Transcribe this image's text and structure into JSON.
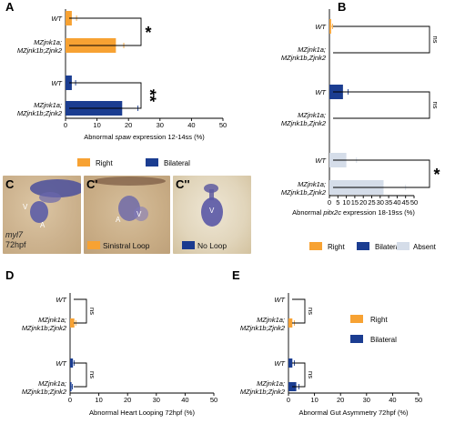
{
  "panels": {
    "A": {
      "letter": "A"
    },
    "B": {
      "letter": "B"
    },
    "C": {
      "letter": "C",
      "letter2": "C'",
      "letter3": "C''",
      "stage": "myl7",
      "time": "72hpf",
      "legend_sinistral": "Sinistral Loop",
      "legend_noloop": "No Loop",
      "chamber_v": "V",
      "chamber_a": "A",
      "colors": {
        "sinistral": "#f7a233",
        "noloop": "#1a3a8f"
      }
    },
    "D": {
      "letter": "D"
    },
    "E": {
      "letter": "E"
    }
  },
  "labels": {
    "wt": "WT",
    "mz_line1": "MZjnk1a;",
    "mz_line2": "MZjnk1b;Zjnk2",
    "mz_b_line1": "MZjnk1a;",
    "mz_b_line2": "MZjnk1b,Zjnk2"
  },
  "legendA": {
    "right": "Right",
    "bilateral": "Bilateral"
  },
  "legendB": {
    "right": "Right",
    "bilateral": "Bilateral",
    "absent": "Absent"
  },
  "legendE": {
    "right": "Right",
    "bilateral": "Bilateral"
  },
  "colors": {
    "right": "#f7a233",
    "bilateral": "#1b3d91",
    "absent": "#d5dde9"
  },
  "chart_data": [
    {
      "id": "A",
      "type": "bar",
      "orientation": "horizontal",
      "xlabel": "Abnormal spaw expression 12-14ss (%)",
      "xlim": [
        0,
        50
      ],
      "xticks": [
        0,
        10,
        20,
        30,
        40,
        50
      ],
      "categories": [
        "WT",
        "MZjnk1a; MZjnk1b;Zjnk2",
        "WT",
        "MZjnk1a; MZjnk1b;Zjnk2"
      ],
      "series": [
        {
          "name": "Right",
          "values": [
            2,
            16,
            null,
            null
          ],
          "errors": [
            1.5,
            2.5,
            null,
            null
          ]
        },
        {
          "name": "Bilateral",
          "values": [
            null,
            null,
            2,
            18
          ],
          "errors": [
            null,
            null,
            1.2,
            5
          ]
        }
      ],
      "significance": [
        "*",
        "**"
      ]
    },
    {
      "id": "B",
      "type": "bar",
      "orientation": "horizontal",
      "xlabel": "Abnormal pitx2c expression 18-19ss (%)",
      "xlim": [
        0,
        50
      ],
      "xticks": [
        0,
        5,
        10,
        15,
        20,
        25,
        30,
        35,
        40,
        45,
        50
      ],
      "categories": [
        "WT",
        "MZjnk1a; MZjnk1b,Zjnk2",
        "WT",
        "MZjnk1a; MZjnk1b,Zjnk2",
        "WT",
        "MZjnk1a; MZjnk1b,Zjnk2"
      ],
      "series": [
        {
          "name": "Right",
          "values": [
            1,
            0,
            null,
            null,
            null,
            null
          ],
          "errors": [
            0.8,
            0,
            null,
            null,
            null,
            null
          ]
        },
        {
          "name": "Bilateral",
          "values": [
            null,
            null,
            8,
            0,
            null,
            null
          ],
          "errors": [
            null,
            null,
            3,
            0,
            null,
            null
          ]
        },
        {
          "name": "Absent",
          "values": [
            null,
            null,
            null,
            null,
            10,
            32
          ],
          "errors": [
            null,
            null,
            null,
            null,
            6,
            13
          ]
        }
      ],
      "significance": [
        "ns",
        "ns",
        "*"
      ]
    },
    {
      "id": "D",
      "type": "bar",
      "orientation": "horizontal",
      "xlabel": "Abnormal Heart Looping 72hpf (%)",
      "xlim": [
        0,
        50
      ],
      "xticks": [
        0,
        10,
        20,
        30,
        40,
        50
      ],
      "categories": [
        "WT",
        "MZjnk1a; MZjnk1b;Zjnk2",
        "WT",
        "MZjnk1a; MZjnk1b;Zjnk2"
      ],
      "series": [
        {
          "name": "Sinistral Loop",
          "values": [
            0,
            1.5,
            null,
            null
          ],
          "errors": [
            0,
            0.5,
            null,
            null
          ]
        },
        {
          "name": "No Loop",
          "values": [
            null,
            null,
            1,
            0.5
          ],
          "errors": [
            null,
            null,
            0.4,
            0.3
          ]
        }
      ],
      "significance": [
        "ns",
        "ns"
      ]
    },
    {
      "id": "E",
      "type": "bar",
      "orientation": "horizontal",
      "xlabel": "Abnormal Gut Asymmetry 72hpf (%)",
      "xlim": [
        0,
        50
      ],
      "xticks": [
        0,
        10,
        20,
        30,
        40,
        50
      ],
      "categories": [
        "WT",
        "MZjnk1a; MZjnk1b;Zjnk2",
        "WT",
        "MZjnk1a; MZjnk1b;Zjnk2"
      ],
      "series": [
        {
          "name": "Right",
          "values": [
            0,
            1.5,
            null,
            null
          ],
          "errors": [
            0,
            0.8,
            null,
            null
          ]
        },
        {
          "name": "Bilateral",
          "values": [
            null,
            null,
            1.5,
            3
          ],
          "errors": [
            null,
            null,
            0.8,
            1
          ]
        }
      ],
      "significance": [
        "ns",
        "ns"
      ]
    }
  ]
}
